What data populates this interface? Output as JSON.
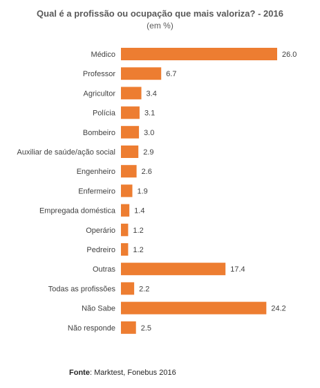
{
  "chart_data": {
    "type": "bar",
    "orientation": "horizontal",
    "title": "Qual é a profissão ou ocupação que mais valoriza?  - 2016",
    "subtitle": "(em %)",
    "categories": [
      "Médico",
      "Professor",
      "Agricultor",
      "Polícia",
      "Bombeiro",
      "Auxiliar de saúde/ação social",
      "Engenheiro",
      "Enfermeiro",
      "Empregada doméstica",
      "Operário",
      "Pedreiro",
      "Outras",
      "Todas as profissões",
      "Não Sabe",
      "Não responde"
    ],
    "values": [
      26.0,
      6.7,
      3.4,
      3.1,
      3.0,
      2.9,
      2.6,
      1.9,
      1.4,
      1.2,
      1.2,
      17.4,
      2.2,
      24.2,
      2.5
    ],
    "value_labels": [
      "26.0",
      "6.7",
      "3.4",
      "3.1",
      "3.0",
      "2.9",
      "2.6",
      "1.9",
      "1.4",
      "1.2",
      "1.2",
      "17.4",
      "2.2",
      "24.2",
      "2.5"
    ],
    "xlim": [
      0,
      26.0
    ],
    "bar_color": "#ED7D31",
    "grid": false,
    "legend": "none"
  },
  "source": {
    "label": "Fonte",
    "text": ": Marktest, Fonebus 2016"
  }
}
